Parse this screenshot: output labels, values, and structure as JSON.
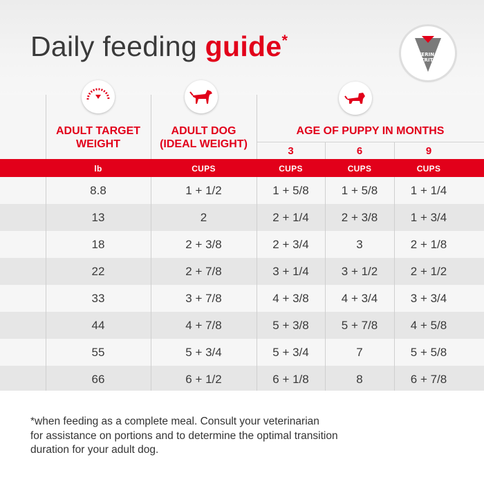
{
  "title": {
    "main": "Daily feeding ",
    "accent": "guide",
    "star": "*"
  },
  "badge": {
    "line1": "VETERINARY",
    "line2": "NUTRITION"
  },
  "colors": {
    "accent": "#e2001a",
    "shade_row": "#e6e6e6",
    "light_row": "#f6f6f6"
  },
  "icons": {
    "col1": "scale-icon",
    "col2": "adult-dog-icon",
    "col3": "puppy-icon"
  },
  "headers": {
    "weight": {
      "line1": "ADULT TARGET",
      "line2": "WEIGHT"
    },
    "adult": {
      "line1": "ADULT DOG",
      "line2": "(IDEAL WEIGHT)"
    },
    "puppy": "AGE OF PUPPY IN MONTHS",
    "months": [
      "3",
      "6",
      "9"
    ]
  },
  "units": [
    "lb",
    "CUPS",
    "CUPS",
    "CUPS",
    "CUPS"
  ],
  "rows": [
    [
      "8.8",
      "1 + 1/2",
      "1 + 5/8",
      "1 + 5/8",
      "1 + 1/4"
    ],
    [
      "13",
      "2",
      "2 + 1/4",
      "2 + 3/8",
      "1 + 3/4"
    ],
    [
      "18",
      "2 + 3/8",
      "2 + 3/4",
      "3",
      "2 + 1/8"
    ],
    [
      "22",
      "2 + 7/8",
      "3 + 1/4",
      "3 + 1/2",
      "2 + 1/2"
    ],
    [
      "33",
      "3 + 7/8",
      "4 + 3/8",
      "4 + 3/4",
      "3 + 3/4"
    ],
    [
      "44",
      "4 + 7/8",
      "5 + 3/8",
      "5 + 7/8",
      "4 + 5/8"
    ],
    [
      "55",
      "5 + 3/4",
      "5 + 3/4",
      "7",
      "5 + 5/8"
    ],
    [
      "66",
      "6 + 1/2",
      "6 + 1/8",
      "8",
      "6 + 7/8"
    ]
  ],
  "footnote": {
    "line1": "*when feeding as a complete meal. Consult your veterinarian",
    "line2": "for assistance on portions and to determine the optimal transition",
    "line3": "duration for your adult dog."
  }
}
